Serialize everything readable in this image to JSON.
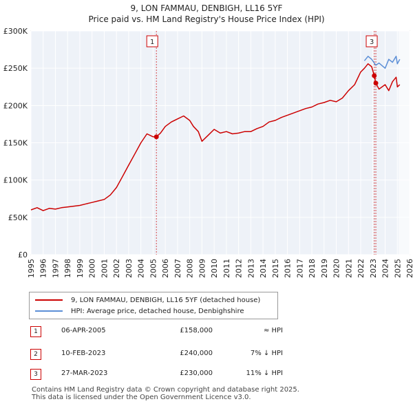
{
  "chart_data": {
    "type": "line",
    "title": "9, LON FAMMAU, DENBIGH, LL16 5YF",
    "subtitle": "Price paid vs. HM Land Registry's House Price Index (HPI)",
    "xlabel": "",
    "ylabel": "",
    "xlim": [
      1995,
      2026
    ],
    "ylim": [
      0,
      300000
    ],
    "y_ticks": [
      0,
      50000,
      100000,
      150000,
      200000,
      250000,
      300000
    ],
    "y_tick_labels": [
      "£0",
      "£50K",
      "£100K",
      "£150K",
      "£200K",
      "£250K",
      "£300K"
    ],
    "x_ticks": [
      1995,
      1996,
      1997,
      1998,
      1999,
      2000,
      2001,
      2002,
      2003,
      2004,
      2005,
      2006,
      2007,
      2008,
      2009,
      2010,
      2011,
      2012,
      2013,
      2014,
      2015,
      2016,
      2017,
      2018,
      2019,
      2020,
      2021,
      2022,
      2023,
      2024,
      2025,
      2026
    ],
    "x_tick_labels": [
      "1995",
      "1996",
      "1997",
      "1998",
      "1999",
      "2000",
      "2001",
      "2002",
      "2003",
      "2004",
      "2005",
      "2006",
      "2007",
      "2008",
      "2009",
      "2010",
      "2011",
      "2012",
      "2013",
      "2014",
      "2015",
      "2016",
      "2017",
      "2018",
      "2019",
      "2020",
      "2021",
      "2022",
      "2023",
      "2024",
      "2025",
      "2026"
    ],
    "grid": true,
    "series": [
      {
        "name": "9, LON FAMMAU, DENBIGH, LL16 5YF (detached house)",
        "color": "#cc0000",
        "x": [
          1995,
          1995.5,
          1996,
          1996.5,
          1997,
          1997.5,
          1998,
          1998.5,
          1999,
          1999.5,
          2000,
          2000.5,
          2001,
          2001.5,
          2002,
          2002.5,
          2003,
          2003.5,
          2004,
          2004.5,
          2005,
          2005.27,
          2005.6,
          2006,
          2006.5,
          2007,
          2007.5,
          2008,
          2008.3,
          2008.7,
          2009,
          2009.5,
          2010,
          2010.5,
          2011,
          2011.5,
          2012,
          2012.5,
          2013,
          2013.5,
          2014,
          2014.5,
          2015,
          2015.5,
          2016,
          2016.5,
          2017,
          2017.5,
          2018,
          2018.5,
          2019,
          2019.5,
          2020,
          2020.5,
          2021,
          2021.5,
          2022,
          2022.3,
          2022.6,
          2022.9,
          2023.11,
          2023.24,
          2023.5,
          2024,
          2024.3,
          2024.6,
          2024.9,
          2025,
          2025.2
        ],
        "y": [
          60000,
          63000,
          59000,
          62000,
          61000,
          63000,
          64000,
          65000,
          66000,
          68000,
          70000,
          72000,
          74000,
          80000,
          90000,
          105000,
          120000,
          135000,
          150000,
          162000,
          158000,
          158000,
          163000,
          172000,
          178000,
          182000,
          186000,
          180000,
          172000,
          165000,
          152000,
          160000,
          168000,
          163000,
          165000,
          162000,
          163000,
          165000,
          165000,
          169000,
          172000,
          178000,
          180000,
          184000,
          187000,
          190000,
          193000,
          196000,
          198000,
          202000,
          204000,
          207000,
          205000,
          210000,
          220000,
          228000,
          245000,
          250000,
          256000,
          252000,
          240000,
          230000,
          222000,
          228000,
          220000,
          232000,
          238000,
          225000,
          228000
        ]
      },
      {
        "name": "HPI: Average price, detached house, Denbighshire",
        "color": "#5b8ed6",
        "x": [
          2022.3,
          2022.6,
          2022.9,
          2023.11,
          2023.24,
          2023.5,
          2024,
          2024.3,
          2024.6,
          2024.9,
          2025,
          2025.2
        ],
        "y": [
          260000,
          266000,
          262000,
          257000,
          254000,
          257000,
          250000,
          262000,
          258000,
          266000,
          256000,
          262000
        ]
      }
    ],
    "transactions": [
      {
        "marker": "1",
        "x": 2005.27,
        "date": "06-APR-2005",
        "price_value": 158000,
        "price": "£158,000",
        "hpi": "≈ HPI"
      },
      {
        "marker": "2",
        "x": 2023.11,
        "date": "10-FEB-2023",
        "price_value": 240000,
        "price": "£240,000",
        "hpi": "7% ↓ HPI"
      },
      {
        "marker": "3",
        "x": 2023.24,
        "date": "27-MAR-2023",
        "price_value": 230000,
        "price": "£230,000",
        "hpi": "11% ↓ HPI"
      }
    ],
    "forecast_start": 2025.1
  },
  "footer": {
    "line1": "Contains HM Land Registry data © Crown copyright and database right 2025.",
    "line2": "This data is licensed under the Open Government Licence v3.0."
  }
}
